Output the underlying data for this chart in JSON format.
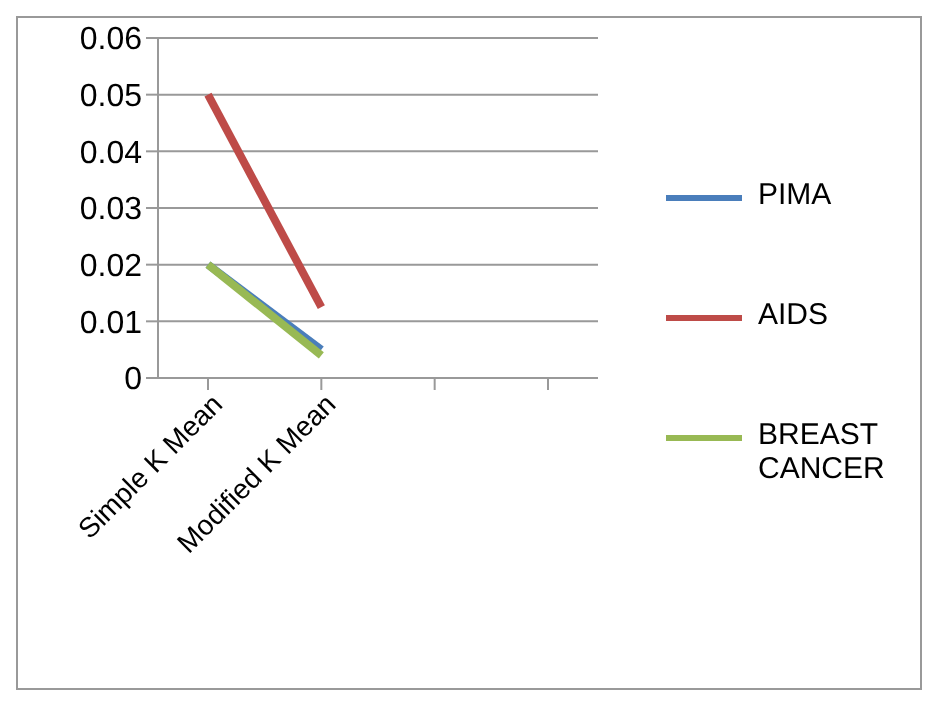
{
  "chart_data": {
    "type": "line",
    "categories": [
      "Simple K Mean",
      "Modified K Mean",
      null,
      null
    ],
    "series": [
      {
        "name": "PIMA",
        "color": "#4a7ebb",
        "values": [
          0.02,
          0.005,
          null,
          null
        ]
      },
      {
        "name": "AIDS",
        "color": "#be4b48",
        "values": [
          0.05,
          0.0125,
          null,
          null
        ]
      },
      {
        "name": "BREAST CANCER",
        "color": "#98b954",
        "values": [
          0.02,
          0.004,
          null,
          null
        ]
      }
    ],
    "ylim": [
      0,
      0.06
    ],
    "yticks": [
      0,
      0.01,
      0.02,
      0.03,
      0.04,
      0.05,
      0.06
    ],
    "grid": "y",
    "legend": "right",
    "marker": "none",
    "line_style": "solid"
  }
}
